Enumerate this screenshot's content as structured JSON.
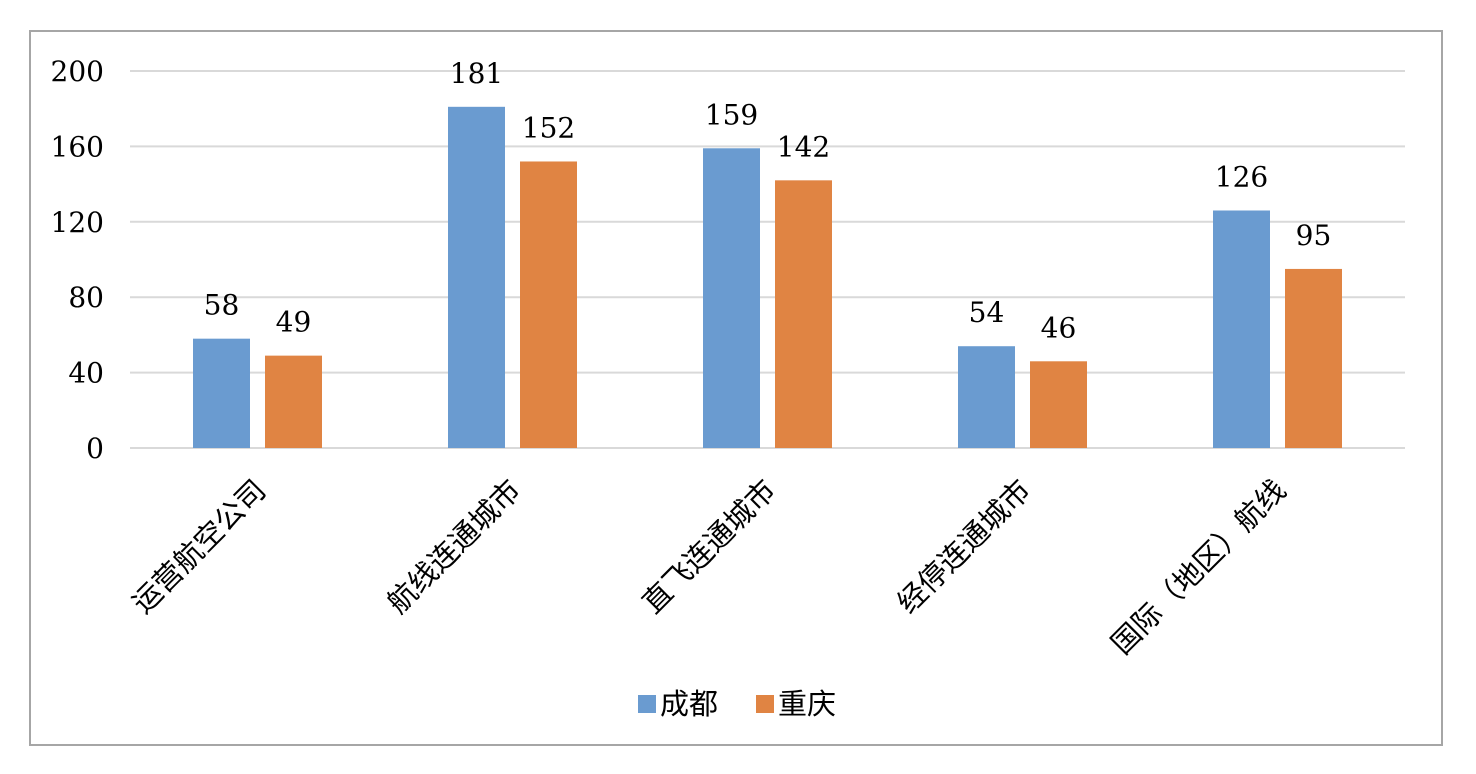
{
  "chart_data": {
    "type": "bar",
    "categories": [
      "运营航空公司",
      "航线连通城市",
      "直飞连通城市",
      "经停连通城市",
      "国际（地区）航线"
    ],
    "series": [
      {
        "name": "成都",
        "values": [
          58,
          181,
          159,
          54,
          126
        ],
        "color": "#6a9bd0"
      },
      {
        "name": "重庆",
        "values": [
          49,
          152,
          142,
          46,
          95
        ],
        "color": "#e08443"
      }
    ],
    "y_ticks": [
      "0",
      "40",
      "80",
      "120",
      "160",
      "200"
    ],
    "ylim": [
      0,
      200
    ],
    "grid": true,
    "gridline_color": "#d9d9d9",
    "legend_position": "bottom",
    "title": "",
    "xlabel": "",
    "ylabel": ""
  }
}
